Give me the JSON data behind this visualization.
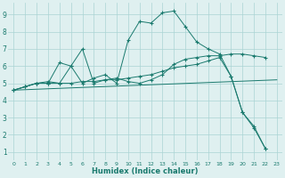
{
  "background_color": "#dff0f0",
  "grid_color": "#aad4d4",
  "line_color": "#1a7a6e",
  "xlabel": "Humidex (Indice chaleur)",
  "xlim": [
    -0.5,
    23.5
  ],
  "ylim": [
    0.5,
    9.7
  ],
  "yticks": [
    1,
    2,
    3,
    4,
    5,
    6,
    7,
    8,
    9
  ],
  "xticks": [
    0,
    1,
    2,
    3,
    4,
    5,
    6,
    7,
    8,
    9,
    10,
    11,
    12,
    13,
    14,
    15,
    16,
    17,
    18,
    19,
    20,
    21,
    22,
    23
  ],
  "curve1_x": [
    0,
    1,
    2,
    3,
    4,
    5,
    6,
    7,
    8,
    9,
    10,
    11,
    12,
    13,
    14,
    15,
    16,
    17,
    18,
    19,
    20,
    21,
    22
  ],
  "curve1_y": [
    4.6,
    4.8,
    5.0,
    5.0,
    6.2,
    6.0,
    5.0,
    5.3,
    5.5,
    5.0,
    7.5,
    8.6,
    8.5,
    9.1,
    9.2,
    8.3,
    7.4,
    7.0,
    6.7,
    5.4,
    3.3,
    2.4,
    1.2
  ],
  "curve2_x": [
    0,
    1,
    2,
    3,
    4,
    5,
    6,
    7,
    8,
    9,
    10,
    11,
    12,
    13,
    14,
    15,
    16,
    17,
    18,
    19,
    20,
    21,
    22
  ],
  "curve2_y": [
    4.6,
    4.8,
    5.0,
    5.1,
    5.0,
    6.0,
    7.0,
    5.0,
    5.2,
    5.3,
    5.1,
    5.0,
    5.2,
    5.5,
    6.1,
    6.4,
    6.5,
    6.6,
    6.6,
    6.7,
    6.7,
    6.6,
    6.5
  ],
  "curve3_x": [
    0,
    1,
    2,
    3,
    4,
    5,
    6,
    7,
    8,
    9,
    10,
    11,
    12,
    13,
    14,
    15,
    16,
    17,
    18,
    19,
    20,
    21,
    22,
    23
  ],
  "curve3_y": [
    4.6,
    4.8,
    5.0,
    5.0,
    5.0,
    5.0,
    5.1,
    5.1,
    5.2,
    5.2,
    5.3,
    5.4,
    5.5,
    5.7,
    5.9,
    6.0,
    6.1,
    6.3,
    6.5,
    5.4,
    3.3,
    2.5,
    1.2,
    null
  ],
  "line4_x": [
    0,
    23
  ],
  "line4_y": [
    4.6,
    5.2
  ]
}
